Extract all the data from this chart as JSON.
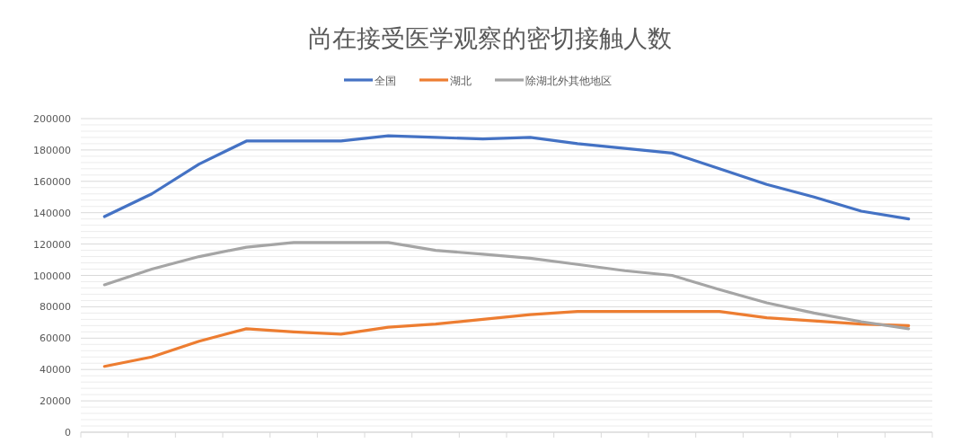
{
  "chart_data": {
    "type": "line",
    "title": "尚在接受医学观察的密切接触人数",
    "categories": [
      null,
      null,
      null,
      null,
      null,
      null,
      null,
      null,
      null,
      null,
      null,
      null,
      null,
      null,
      null,
      null,
      null,
      null
    ],
    "series": [
      {
        "name": "全国",
        "color": "#4472c4",
        "values": [
          137500,
          152000,
          171000,
          185700,
          185700,
          185700,
          189000,
          188000,
          187000,
          188000,
          184000,
          181000,
          178000,
          168000,
          158000,
          150000,
          141000,
          136000
        ]
      },
      {
        "name": "湖北",
        "color": "#ed7d31",
        "values": [
          42000,
          48000,
          58000,
          66000,
          64000,
          62500,
          67000,
          69000,
          72000,
          75000,
          77000,
          77000,
          77000,
          77000,
          73000,
          71000,
          69000,
          68000
        ]
      },
      {
        "name": "除湖北外其他地区",
        "color": "#a5a5a5",
        "values": [
          94000,
          104000,
          112000,
          118000,
          121000,
          121000,
          121000,
          116000,
          113500,
          111000,
          107000,
          103000,
          100000,
          91000,
          82500,
          76000,
          70500,
          66000
        ]
      }
    ],
    "ylim": [
      0,
      200000
    ],
    "yticks": [
      0,
      20000,
      40000,
      60000,
      80000,
      100000,
      120000,
      140000,
      160000,
      180000,
      200000
    ],
    "grid": "y",
    "legend": "top",
    "tick_labels": "y",
    "line_style": "solid",
    "marker": "none"
  }
}
